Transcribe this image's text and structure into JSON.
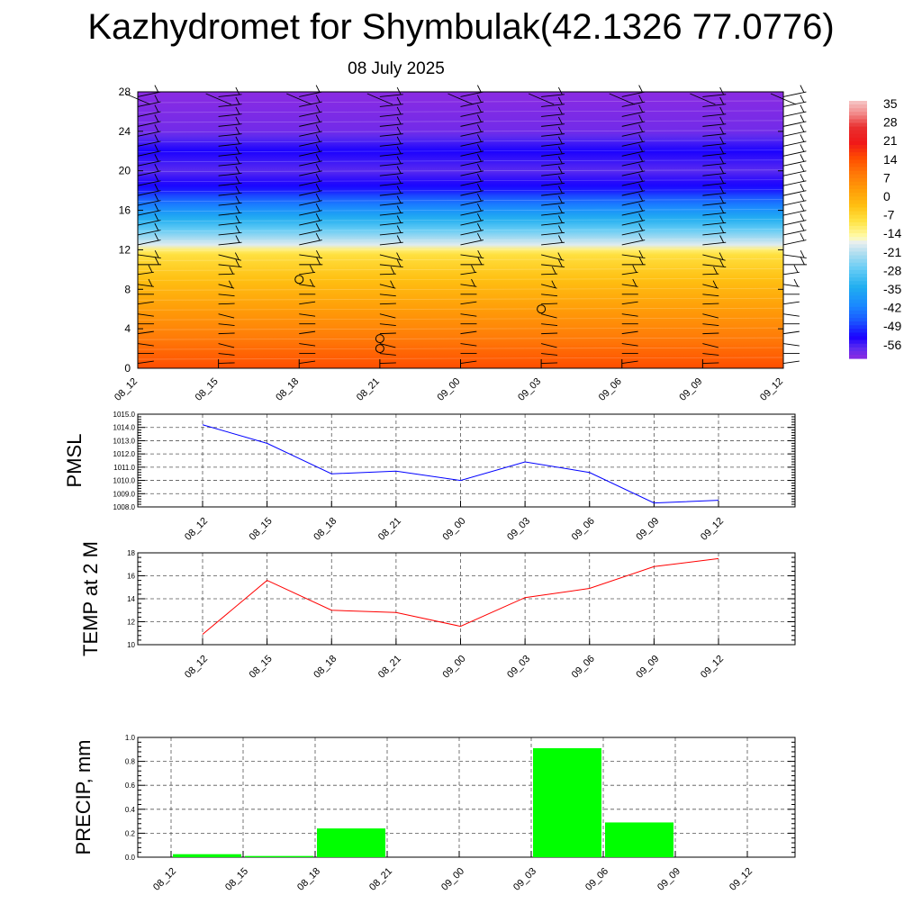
{
  "page": {
    "title": "Kazhydromet for Shymbulak(42.1326 77.0776)",
    "date": "08 July 2025"
  },
  "colors": {
    "pmsl_line": "#0000ff",
    "temp_line": "#ff0000",
    "precip_bar": "#00ff00",
    "grid": "#555555"
  },
  "chart_data": [
    {
      "type": "heatmap",
      "name": "temperature-cross-section",
      "x_ticks": [
        "08_12",
        "08_15",
        "08_18",
        "08_21",
        "09_00",
        "09_03",
        "09_06",
        "09_09",
        "09_12"
      ],
      "y_ticks": [
        0,
        4,
        8,
        12,
        16,
        20,
        24,
        28
      ],
      "ylim": [
        0,
        28
      ],
      "colorbar_labels": [
        "35",
        "28",
        "21",
        "14",
        "7",
        "0",
        "-7",
        "-14",
        "-21",
        "-28",
        "-35",
        "-42",
        "-49",
        "-56"
      ],
      "colorbar_range": [
        -60,
        38
      ],
      "profile": [
        {
          "h": 0,
          "t": 16
        },
        {
          "h": 2,
          "t": 12
        },
        {
          "h": 4,
          "t": 8
        },
        {
          "h": 6,
          "t": 4
        },
        {
          "h": 8,
          "t": 0
        },
        {
          "h": 10,
          "t": -4
        },
        {
          "h": 11.8,
          "t": -8
        },
        {
          "h": 12.4,
          "t": -16
        },
        {
          "h": 14,
          "t": -26
        },
        {
          "h": 16,
          "t": -38
        },
        {
          "h": 18,
          "t": -50
        },
        {
          "h": 20,
          "t": -56
        },
        {
          "h": 22,
          "t": -52
        },
        {
          "h": 24,
          "t": -58
        },
        {
          "h": 28,
          "t": -60
        }
      ],
      "wind_levels": [
        0.5,
        1.5,
        2.5,
        3.5,
        4.5,
        5.5,
        6.5,
        7.5,
        8.5,
        9.5,
        10.5,
        11.5,
        12.5,
        13.5,
        14.5,
        15.5,
        16.5,
        17.5,
        18.5,
        19.5,
        20.5,
        21.5,
        22.5,
        23.5,
        24.5,
        25.5,
        26.5,
        27.5
      ],
      "calm_markers": [
        {
          "x": "08_18",
          "h": 9
        },
        {
          "x": "08_21",
          "h": 3
        },
        {
          "x": "08_21",
          "h": 2
        },
        {
          "x": "09_03",
          "h": 6
        }
      ]
    },
    {
      "type": "line",
      "ylabel": "PMSL",
      "categories": [
        "08_12",
        "08_15",
        "08_18",
        "08_21",
        "09_00",
        "09_03",
        "09_06",
        "09_09",
        "09_12"
      ],
      "values": [
        1014.2,
        1012.8,
        1010.5,
        1010.7,
        1010.0,
        1011.4,
        1010.6,
        1008.3,
        1008.5
      ],
      "ylim": [
        1008.0,
        1015.0
      ],
      "y_ticks": [
        "1008.0",
        "1009.0",
        "1010.0",
        "1011.0",
        "1012.0",
        "1013.0",
        "1014.0",
        "1015.0"
      ],
      "grid": true
    },
    {
      "type": "line",
      "ylabel": "TEMP at 2 M",
      "categories": [
        "08_12",
        "08_15",
        "08_18",
        "08_21",
        "09_00",
        "09_03",
        "09_06",
        "09_09",
        "09_12"
      ],
      "values": [
        10.9,
        15.6,
        13.0,
        12.8,
        11.6,
        14.1,
        14.9,
        16.8,
        17.5
      ],
      "ylim": [
        10,
        18
      ],
      "y_ticks": [
        "10",
        "12",
        "14",
        "16",
        "18"
      ],
      "grid": true
    },
    {
      "type": "bar",
      "ylabel": "PRECIP, mm",
      "categories": [
        "08_12",
        "08_15",
        "08_18",
        "08_21",
        "09_00",
        "09_03",
        "09_06",
        "09_09",
        "09_12"
      ],
      "values": [
        0,
        0.025,
        0.01,
        0.24,
        0,
        0,
        0.91,
        0.29,
        0
      ],
      "ylim": [
        0,
        1.0
      ],
      "y_ticks": [
        "0.0",
        "0.2",
        "0.4",
        "0.6",
        "0.8",
        "1.0"
      ],
      "grid": true
    }
  ]
}
